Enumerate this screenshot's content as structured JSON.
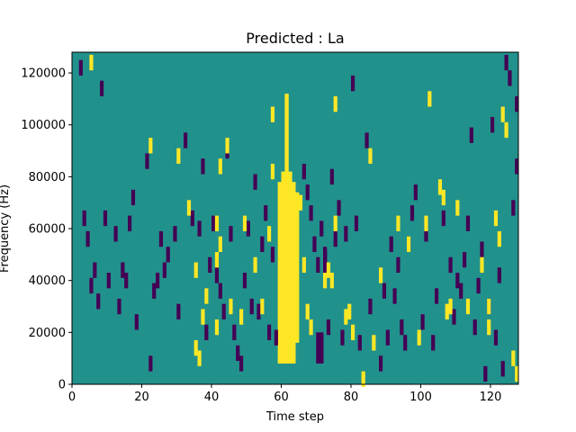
{
  "chart_data": {
    "type": "heatmap",
    "title": "Predicted : La",
    "xlabel": "Time step",
    "ylabel": "Frequency (Hz)",
    "xlim": [
      0,
      128
    ],
    "ylim": [
      0,
      128000
    ],
    "x_ticks": [
      0,
      20,
      40,
      60,
      80,
      100,
      120
    ],
    "y_ticks": [
      0,
      20000,
      40000,
      60000,
      80000,
      100000,
      120000
    ],
    "grid": false,
    "colors": {
      "background": "#21918c",
      "low": "#440154",
      "high": "#fde725"
    },
    "yellow_columns": [
      {
        "x": 59,
        "y0": 8000,
        "y1": 78000
      },
      {
        "x": 60,
        "y0": 8000,
        "y1": 82000
      },
      {
        "x": 61,
        "y0": 8000,
        "y1": 112000
      },
      {
        "x": 62,
        "y0": 8000,
        "y1": 82000
      },
      {
        "x": 63,
        "y0": 8000,
        "y1": 78000
      },
      {
        "x": 64,
        "y0": 16000,
        "y1": 74000
      }
    ],
    "purple_columns": [
      {
        "x": 70,
        "y0": 8000,
        "y1": 20000
      },
      {
        "x": 71,
        "y0": 8000,
        "y1": 20000
      },
      {
        "x": 72,
        "y0": 42000,
        "y1": 52000
      }
    ],
    "yellow_cells": [
      [
        5,
        124000
      ],
      [
        22,
        92000
      ],
      [
        30,
        88000
      ],
      [
        33,
        68000
      ],
      [
        35,
        44000
      ],
      [
        35,
        14000
      ],
      [
        36,
        10000
      ],
      [
        37,
        26000
      ],
      [
        38,
        34000
      ],
      [
        41,
        62000
      ],
      [
        41,
        48000
      ],
      [
        41,
        22000
      ],
      [
        42,
        84000
      ],
      [
        42,
        54000
      ],
      [
        44,
        92000
      ],
      [
        45,
        30000
      ],
      [
        48,
        26000
      ],
      [
        49,
        62000
      ],
      [
        52,
        46000
      ],
      [
        54,
        30000
      ],
      [
        56,
        58000
      ],
      [
        57,
        82000
      ],
      [
        57,
        104000
      ],
      [
        60,
        62000
      ],
      [
        63,
        66000
      ],
      [
        65,
        70000
      ],
      [
        66,
        46000
      ],
      [
        67,
        28000
      ],
      [
        68,
        22000
      ],
      [
        72,
        40000
      ],
      [
        73,
        44000
      ],
      [
        74,
        40000
      ],
      [
        75,
        108000
      ],
      [
        75,
        62000
      ],
      [
        78,
        26000
      ],
      [
        79,
        28000
      ],
      [
        80,
        20000
      ],
      [
        83,
        2000
      ],
      [
        85,
        88000
      ],
      [
        86,
        16000
      ],
      [
        88,
        42000
      ],
      [
        93,
        62000
      ],
      [
        96,
        54000
      ],
      [
        99,
        18000
      ],
      [
        101,
        62000
      ],
      [
        102,
        110000
      ],
      [
        105,
        76000
      ],
      [
        106,
        72000
      ],
      [
        107,
        28000
      ],
      [
        108,
        30000
      ],
      [
        110,
        68000
      ],
      [
        113,
        30000
      ],
      [
        117,
        46000
      ],
      [
        119,
        22000
      ],
      [
        119,
        30000
      ],
      [
        121,
        64000
      ],
      [
        122,
        56000
      ],
      [
        123,
        104000
      ],
      [
        124,
        98000
      ],
      [
        126,
        10000
      ],
      [
        127,
        4000
      ]
    ],
    "purple_cells": [
      [
        2,
        122000
      ],
      [
        3,
        64000
      ],
      [
        4,
        56000
      ],
      [
        5,
        38000
      ],
      [
        6,
        44000
      ],
      [
        7,
        32000
      ],
      [
        8,
        114000
      ],
      [
        9,
        64000
      ],
      [
        10,
        40000
      ],
      [
        12,
        58000
      ],
      [
        13,
        30000
      ],
      [
        14,
        44000
      ],
      [
        15,
        40000
      ],
      [
        16,
        62000
      ],
      [
        17,
        72000
      ],
      [
        18,
        24000
      ],
      [
        21,
        86000
      ],
      [
        22,
        8000
      ],
      [
        23,
        36000
      ],
      [
        24,
        40000
      ],
      [
        25,
        56000
      ],
      [
        26,
        44000
      ],
      [
        27,
        50000
      ],
      [
        29,
        58000
      ],
      [
        30,
        28000
      ],
      [
        32,
        94000
      ],
      [
        34,
        64000
      ],
      [
        36,
        60000
      ],
      [
        37,
        84000
      ],
      [
        38,
        20000
      ],
      [
        39,
        46000
      ],
      [
        40,
        62000
      ],
      [
        41,
        42000
      ],
      [
        42,
        36000
      ],
      [
        43,
        28000
      ],
      [
        44,
        90000
      ],
      [
        45,
        58000
      ],
      [
        46,
        20000
      ],
      [
        47,
        12000
      ],
      [
        48,
        8000
      ],
      [
        49,
        40000
      ],
      [
        50,
        60000
      ],
      [
        51,
        30000
      ],
      [
        52,
        78000
      ],
      [
        53,
        28000
      ],
      [
        54,
        54000
      ],
      [
        55,
        66000
      ],
      [
        56,
        20000
      ],
      [
        57,
        50000
      ],
      [
        58,
        18000
      ],
      [
        66,
        82000
      ],
      [
        67,
        74000
      ],
      [
        68,
        66000
      ],
      [
        69,
        54000
      ],
      [
        70,
        46000
      ],
      [
        71,
        60000
      ],
      [
        72,
        50000
      ],
      [
        73,
        22000
      ],
      [
        74,
        80000
      ],
      [
        75,
        56000
      ],
      [
        76,
        68000
      ],
      [
        77,
        18000
      ],
      [
        78,
        58000
      ],
      [
        80,
        116000
      ],
      [
        81,
        62000
      ],
      [
        82,
        16000
      ],
      [
        84,
        94000
      ],
      [
        85,
        30000
      ],
      [
        88,
        8000
      ],
      [
        89,
        36000
      ],
      [
        90,
        18000
      ],
      [
        91,
        54000
      ],
      [
        92,
        34000
      ],
      [
        93,
        46000
      ],
      [
        94,
        22000
      ],
      [
        95,
        16000
      ],
      [
        96,
        54000
      ],
      [
        97,
        66000
      ],
      [
        98,
        74000
      ],
      [
        100,
        24000
      ],
      [
        101,
        58000
      ],
      [
        103,
        16000
      ],
      [
        104,
        34000
      ],
      [
        106,
        64000
      ],
      [
        108,
        46000
      ],
      [
        109,
        26000
      ],
      [
        110,
        40000
      ],
      [
        111,
        36000
      ],
      [
        112,
        48000
      ],
      [
        113,
        62000
      ],
      [
        114,
        96000
      ],
      [
        115,
        22000
      ],
      [
        116,
        38000
      ],
      [
        117,
        52000
      ],
      [
        118,
        4000
      ],
      [
        119,
        30000
      ],
      [
        120,
        100000
      ],
      [
        121,
        18000
      ],
      [
        122,
        42000
      ],
      [
        123,
        6000
      ],
      [
        124,
        124000
      ],
      [
        125,
        118000
      ],
      [
        126,
        68000
      ],
      [
        127,
        108000
      ],
      [
        127,
        84000
      ]
    ]
  }
}
